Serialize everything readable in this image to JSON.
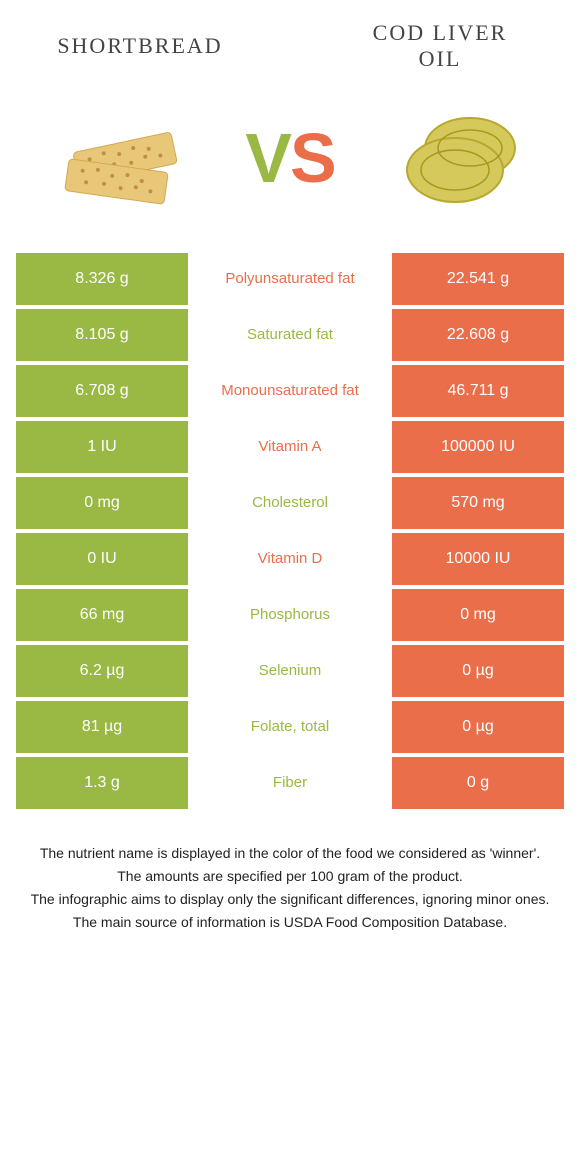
{
  "colors": {
    "left": "#99b944",
    "right": "#eb6e4b",
    "vs_v": "#99b944",
    "vs_s": "#eb6e4b",
    "shortbread_fill": "#e8c878",
    "shortbread_stroke": "#d4a850",
    "oil_fill": "#d4c95a",
    "oil_stroke": "#b8a830"
  },
  "titles": {
    "left": "SHORTBREAD",
    "right_line1": "COD LIVER",
    "right_line2": "OIL"
  },
  "vs": {
    "v": "V",
    "s": "S"
  },
  "rows": [
    {
      "left": "8.326 g",
      "label": "Polyunsaturated fat",
      "right": "22.541 g",
      "winner": "right"
    },
    {
      "left": "8.105 g",
      "label": "Saturated fat",
      "right": "22.608 g",
      "winner": "left"
    },
    {
      "left": "6.708 g",
      "label": "Monounsaturated fat",
      "right": "46.711 g",
      "winner": "right"
    },
    {
      "left": "1 IU",
      "label": "Vitamin A",
      "right": "100000 IU",
      "winner": "right"
    },
    {
      "left": "0 mg",
      "label": "Cholesterol",
      "right": "570 mg",
      "winner": "left"
    },
    {
      "left": "0 IU",
      "label": "Vitamin D",
      "right": "10000 IU",
      "winner": "right"
    },
    {
      "left": "66 mg",
      "label": "Phosphorus",
      "right": "0 mg",
      "winner": "left"
    },
    {
      "left": "6.2 µg",
      "label": "Selenium",
      "right": "0 µg",
      "winner": "left"
    },
    {
      "left": "81 µg",
      "label": "Folate, total",
      "right": "0 µg",
      "winner": "left"
    },
    {
      "left": "1.3 g",
      "label": "Fiber",
      "right": "0 g",
      "winner": "left"
    }
  ],
  "footer": [
    "The nutrient name is displayed in the color of the food we considered as 'winner'.",
    "The amounts are specified per 100 gram of the product.",
    "The infographic aims to display only the significant differences, ignoring minor ones.",
    "The main source of information is USDA Food Composition Database."
  ]
}
